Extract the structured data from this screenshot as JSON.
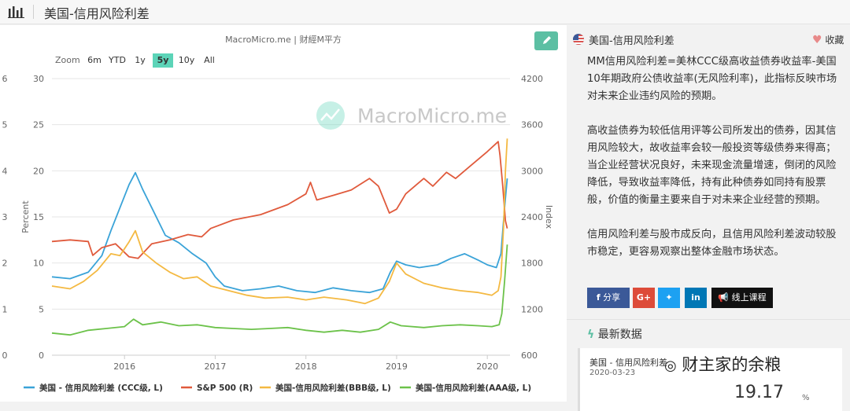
{
  "header": {
    "title": "美国-信用风险利差"
  },
  "chart_panel": {
    "source": "MacroMicro.me | 财經M平方",
    "watermark": "MacroMicro.me",
    "zoom_label": "Zoom",
    "zoom_options": [
      "6m",
      "YTD",
      "1y",
      "5y",
      "10y",
      "All"
    ],
    "zoom_active": "5y"
  },
  "chart_data": {
    "type": "line",
    "left_axis": {
      "label": "Percent",
      "ticks": [
        "0",
        "5",
        "10",
        "15",
        "20",
        "25",
        "30"
      ],
      "range": [
        0,
        30
      ]
    },
    "right_axis": {
      "label": "Index",
      "ticks": [
        "600",
        "1200",
        "1800",
        "2400",
        "3000",
        "3600",
        "4200"
      ],
      "range": [
        600,
        4200
      ]
    },
    "far_left_ticks": [
      "0",
      "1",
      "2",
      "3",
      "4",
      "5",
      "6"
    ],
    "x_ticks": [
      "2016",
      "2017",
      "2018",
      "2019",
      "2020"
    ],
    "series": [
      {
        "name": "美国 - 信用风险利差 (CCC级, L)",
        "color": "#3aa3d8",
        "axis": "left",
        "points": [
          [
            2015.2,
            8.5
          ],
          [
            2015.4,
            8.3
          ],
          [
            2015.6,
            9.0
          ],
          [
            2015.75,
            10.8
          ],
          [
            2015.85,
            13.5
          ],
          [
            2015.95,
            16.0
          ],
          [
            2016.05,
            18.5
          ],
          [
            2016.12,
            19.8
          ],
          [
            2016.2,
            18.0
          ],
          [
            2016.3,
            16.0
          ],
          [
            2016.45,
            13.0
          ],
          [
            2016.6,
            12.2
          ],
          [
            2016.75,
            11.0
          ],
          [
            2016.9,
            10.0
          ],
          [
            2017.0,
            8.5
          ],
          [
            2017.1,
            7.5
          ],
          [
            2017.3,
            7.0
          ],
          [
            2017.5,
            7.2
          ],
          [
            2017.7,
            7.5
          ],
          [
            2017.9,
            7.0
          ],
          [
            2018.1,
            6.8
          ],
          [
            2018.3,
            7.3
          ],
          [
            2018.5,
            7.0
          ],
          [
            2018.7,
            6.8
          ],
          [
            2018.85,
            7.2
          ],
          [
            2018.93,
            9.0
          ],
          [
            2019.0,
            10.2
          ],
          [
            2019.1,
            9.8
          ],
          [
            2019.25,
            9.5
          ],
          [
            2019.45,
            9.8
          ],
          [
            2019.6,
            10.5
          ],
          [
            2019.75,
            11.0
          ],
          [
            2019.9,
            10.3
          ],
          [
            2020.0,
            9.8
          ],
          [
            2020.1,
            9.5
          ],
          [
            2020.15,
            11.0
          ],
          [
            2020.19,
            16.0
          ],
          [
            2020.22,
            19.17
          ]
        ]
      },
      {
        "name": "S&P 500 (R)",
        "color": "#e05a3c",
        "axis": "right",
        "points": [
          [
            2015.2,
            2080
          ],
          [
            2015.4,
            2100
          ],
          [
            2015.6,
            2080
          ],
          [
            2015.65,
            1900
          ],
          [
            2015.75,
            2000
          ],
          [
            2015.9,
            2050
          ],
          [
            2016.05,
            1880
          ],
          [
            2016.15,
            1860
          ],
          [
            2016.3,
            2050
          ],
          [
            2016.5,
            2100
          ],
          [
            2016.7,
            2170
          ],
          [
            2016.85,
            2140
          ],
          [
            2016.95,
            2250
          ],
          [
            2017.2,
            2360
          ],
          [
            2017.5,
            2430
          ],
          [
            2017.8,
            2560
          ],
          [
            2018.0,
            2700
          ],
          [
            2018.05,
            2850
          ],
          [
            2018.12,
            2620
          ],
          [
            2018.3,
            2680
          ],
          [
            2018.5,
            2750
          ],
          [
            2018.7,
            2900
          ],
          [
            2018.8,
            2800
          ],
          [
            2018.92,
            2450
          ],
          [
            2019.0,
            2500
          ],
          [
            2019.1,
            2700
          ],
          [
            2019.3,
            2900
          ],
          [
            2019.4,
            2800
          ],
          [
            2019.55,
            2980
          ],
          [
            2019.65,
            2900
          ],
          [
            2019.8,
            3050
          ],
          [
            2020.0,
            3250
          ],
          [
            2020.12,
            3380
          ],
          [
            2020.14,
            3200
          ],
          [
            2020.17,
            2800
          ],
          [
            2020.2,
            2350
          ],
          [
            2020.22,
            2250
          ]
        ]
      },
      {
        "name": "美国-信用风险利差(BBB级, L)",
        "color": "#f4b942",
        "axis": "left",
        "points": [
          [
            2015.2,
            7.5
          ],
          [
            2015.4,
            7.2
          ],
          [
            2015.55,
            8.0
          ],
          [
            2015.7,
            9.2
          ],
          [
            2015.85,
            11.0
          ],
          [
            2015.95,
            10.8
          ],
          [
            2016.05,
            12.3
          ],
          [
            2016.12,
            13.5
          ],
          [
            2016.2,
            11.2
          ],
          [
            2016.35,
            10.0
          ],
          [
            2016.5,
            9.0
          ],
          [
            2016.65,
            8.3
          ],
          [
            2016.8,
            8.5
          ],
          [
            2016.95,
            7.5
          ],
          [
            2017.15,
            7.0
          ],
          [
            2017.35,
            6.5
          ],
          [
            2017.55,
            6.2
          ],
          [
            2017.8,
            6.3
          ],
          [
            2018.0,
            6.0
          ],
          [
            2018.2,
            6.3
          ],
          [
            2018.45,
            6.0
          ],
          [
            2018.65,
            5.6
          ],
          [
            2018.8,
            6.2
          ],
          [
            2018.92,
            8.0
          ],
          [
            2019.0,
            10.0
          ],
          [
            2019.1,
            8.8
          ],
          [
            2019.3,
            7.8
          ],
          [
            2019.5,
            7.3
          ],
          [
            2019.7,
            7.0
          ],
          [
            2019.9,
            6.8
          ],
          [
            2020.05,
            6.5
          ],
          [
            2020.12,
            7.0
          ],
          [
            2020.15,
            8.5
          ],
          [
            2020.18,
            14.0
          ],
          [
            2020.2,
            20.0
          ],
          [
            2020.22,
            23.5
          ]
        ]
      },
      {
        "name": "美国-信用风险利差(AAA级, L)",
        "color": "#6cc24a",
        "axis": "left",
        "points": [
          [
            2015.2,
            2.4
          ],
          [
            2015.4,
            2.2
          ],
          [
            2015.6,
            2.7
          ],
          [
            2015.8,
            2.9
          ],
          [
            2016.0,
            3.1
          ],
          [
            2016.1,
            3.9
          ],
          [
            2016.2,
            3.3
          ],
          [
            2016.4,
            3.6
          ],
          [
            2016.6,
            3.2
          ],
          [
            2016.8,
            3.3
          ],
          [
            2017.0,
            3.0
          ],
          [
            2017.2,
            2.9
          ],
          [
            2017.4,
            2.8
          ],
          [
            2017.6,
            2.9
          ],
          [
            2017.8,
            3.0
          ],
          [
            2018.0,
            2.7
          ],
          [
            2018.2,
            2.5
          ],
          [
            2018.4,
            2.7
          ],
          [
            2018.6,
            2.5
          ],
          [
            2018.8,
            2.8
          ],
          [
            2018.93,
            3.6
          ],
          [
            2019.05,
            3.2
          ],
          [
            2019.3,
            3.0
          ],
          [
            2019.5,
            3.2
          ],
          [
            2019.7,
            3.3
          ],
          [
            2019.9,
            3.2
          ],
          [
            2020.05,
            3.1
          ],
          [
            2020.13,
            3.3
          ],
          [
            2020.16,
            4.5
          ],
          [
            2020.19,
            8.0
          ],
          [
            2020.22,
            12.0
          ]
        ]
      }
    ]
  },
  "side": {
    "title": "美国-信用风险利差",
    "fav_label": "收藏",
    "paragraphs": [
      "MM信用风险利差=美林CCC级高收益债券收益率-美国10年期政府公债收益率(无风险利率)，此指标反映市场对未来企业违约风险的预期。",
      "高收益债券为较低信用评等公司所发出的债券，因其信用风险较大，故收益率会较一般投资等级债券来得高；当企业经营状况良好，未来现金流量增速，倒闭的风险降低，导致收益率降低，持有此种债券如同持有股票般，价值的衡量主要来自于对未来企业经营的预期。",
      "信用风险利差与股市成反向，且信用风险利差波动较股市稳定，更容易观察出整体金融市场状态。"
    ],
    "share_label": "分享",
    "gplus_label": "G+",
    "course_label": "线上课程",
    "latest_title": "最新数据",
    "latest_name": "美国 - 信用风险利差",
    "latest_date": "2020-03-23",
    "latest_value": "19.17",
    "latest_unit": "%"
  },
  "watermark_overlay": "财主家的余粮",
  "colors": {
    "accent": "#5cbfa3",
    "facebook": "#3b5998",
    "google": "#dd4b39",
    "twitter": "#1da1f2",
    "linkedin": "#0077b5",
    "course": "#111111"
  }
}
